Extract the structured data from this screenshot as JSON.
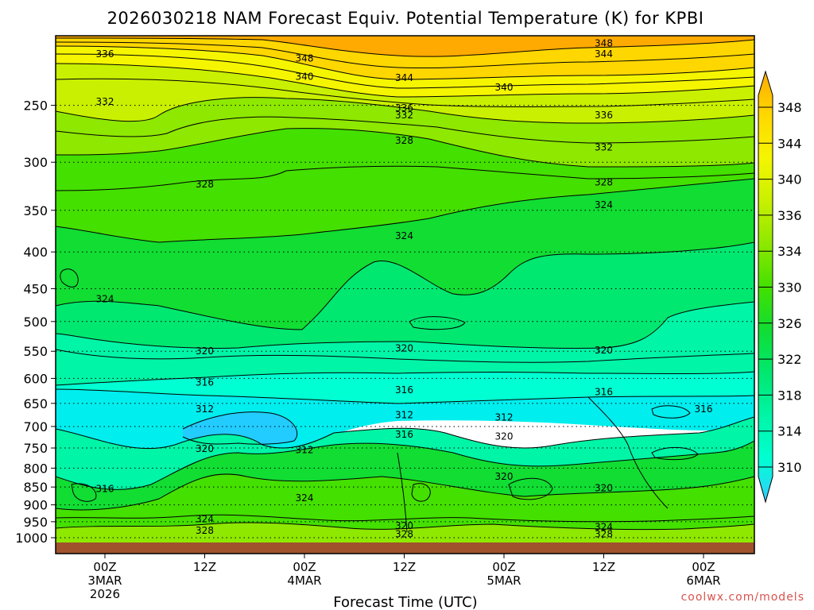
{
  "title": "2026030218 NAM Forecast Equiv. Potential Temperature (K) for KPBI",
  "credit": "coolwx.com/models",
  "colors": {
    "ground": "#a0522d",
    "colorbar": [
      "#33ccff",
      "#00ffd2",
      "#00f5a6",
      "#00e870",
      "#11dd33",
      "#44e000",
      "#8ee800",
      "#c9f000",
      "#f5f500",
      "#ffd700",
      "#ffaa00"
    ]
  },
  "chart_data": {
    "type": "heatmap",
    "title": "2026030218 NAM Forecast Equiv. Potential Temperature (K) for KPBI",
    "xlabel": "Forecast Time (UTC)",
    "ylabel": "",
    "y_scale": "log",
    "y_inverted": true,
    "ylim": [
      1000,
      200
    ],
    "y_ticks": [
      250,
      300,
      350,
      400,
      450,
      500,
      550,
      600,
      650,
      700,
      750,
      800,
      850,
      900,
      950,
      1000
    ],
    "x_ticks": [
      {
        "label": "00Z",
        "sub": [
          "3MAR",
          "2026"
        ]
      },
      {
        "label": "12Z",
        "sub": []
      },
      {
        "label": "00Z",
        "sub": [
          "4MAR"
        ]
      },
      {
        "label": "12Z",
        "sub": []
      },
      {
        "label": "00Z",
        "sub": [
          "5MAR"
        ]
      },
      {
        "label": "12Z",
        "sub": []
      },
      {
        "label": "00Z",
        "sub": [
          "6MAR"
        ]
      }
    ],
    "colorbar_ticks": [
      348,
      344,
      340,
      336,
      334,
      330,
      326,
      322,
      318,
      314,
      310
    ],
    "contour_interval_K": 2,
    "grid": "dotted horizontal at pressure ticks",
    "contour_labels": [
      {
        "text": "336",
        "pressure": 212,
        "time": "00Z 3MAR"
      },
      {
        "text": "348",
        "pressure": 215,
        "time": "00Z 4MAR"
      },
      {
        "text": "348",
        "pressure": 205,
        "time": "12Z 5MAR"
      },
      {
        "text": "344",
        "pressure": 212,
        "time": "12Z 5MAR"
      },
      {
        "text": "340",
        "pressure": 228,
        "time": "00Z 4MAR"
      },
      {
        "text": "344",
        "pressure": 229,
        "time": "12Z 4MAR"
      },
      {
        "text": "340",
        "pressure": 236,
        "time": "00Z 5MAR"
      },
      {
        "text": "332",
        "pressure": 247,
        "time": "00Z 3MAR"
      },
      {
        "text": "336",
        "pressure": 252,
        "time": "12Z 4MAR"
      },
      {
        "text": "332",
        "pressure": 258,
        "time": "12Z 4MAR"
      },
      {
        "text": "336",
        "pressure": 258,
        "time": "12Z 5MAR"
      },
      {
        "text": "328",
        "pressure": 280,
        "time": "12Z 4MAR"
      },
      {
        "text": "332",
        "pressure": 286,
        "time": "12Z 5MAR"
      },
      {
        "text": "328",
        "pressure": 322,
        "time": "12Z 3MAR"
      },
      {
        "text": "328",
        "pressure": 320,
        "time": "12Z 5MAR"
      },
      {
        "text": "324",
        "pressure": 344,
        "time": "12Z 5MAR"
      },
      {
        "text": "324",
        "pressure": 380,
        "time": "12Z 4MAR"
      },
      {
        "text": "324",
        "pressure": 465,
        "time": "00Z 3MAR"
      },
      {
        "text": "320",
        "pressure": 550,
        "time": "12Z 3MAR"
      },
      {
        "text": "320",
        "pressure": 545,
        "time": "12Z 4MAR"
      },
      {
        "text": "320",
        "pressure": 548,
        "time": "12Z 5MAR"
      },
      {
        "text": "316",
        "pressure": 608,
        "time": "12Z 3MAR"
      },
      {
        "text": "316",
        "pressure": 623,
        "time": "12Z 4MAR"
      },
      {
        "text": "316",
        "pressure": 627,
        "time": "12Z 5MAR"
      },
      {
        "text": "312",
        "pressure": 662,
        "time": "12Z 3MAR"
      },
      {
        "text": "312",
        "pressure": 675,
        "time": "12Z 4MAR"
      },
      {
        "text": "312",
        "pressure": 680,
        "time": "00Z 5MAR"
      },
      {
        "text": "316",
        "pressure": 662,
        "time": "00Z 6MAR"
      },
      {
        "text": "316",
        "pressure": 718,
        "time": "12Z 4MAR"
      },
      {
        "text": "320",
        "pressure": 723,
        "time": "00Z 5MAR"
      },
      {
        "text": "320",
        "pressure": 752,
        "time": "12Z 3MAR"
      },
      {
        "text": "312",
        "pressure": 755,
        "time": "00Z 4MAR"
      },
      {
        "text": "320",
        "pressure": 822,
        "time": "00Z 5MAR"
      },
      {
        "text": "320",
        "pressure": 853,
        "time": "12Z 5MAR"
      },
      {
        "text": "316",
        "pressure": 855,
        "time": "00Z 3MAR"
      },
      {
        "text": "324",
        "pressure": 880,
        "time": "00Z 4MAR"
      },
      {
        "text": "324",
        "pressure": 942,
        "time": "12Z 3MAR"
      },
      {
        "text": "320",
        "pressure": 963,
        "time": "12Z 4MAR"
      },
      {
        "text": "328",
        "pressure": 988,
        "time": "12Z 4MAR"
      },
      {
        "text": "328",
        "pressure": 977,
        "time": "12Z 3MAR"
      },
      {
        "text": "324",
        "pressure": 966,
        "time": "12Z 5MAR"
      },
      {
        "text": "328",
        "pressure": 988,
        "time": "12Z 5MAR"
      }
    ]
  }
}
